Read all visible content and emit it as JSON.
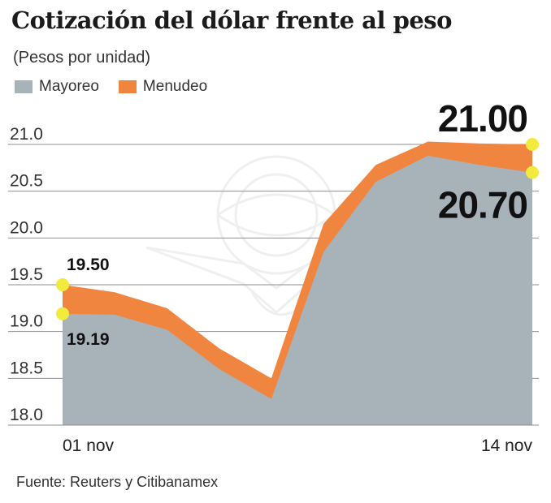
{
  "chart_data": {
    "type": "area",
    "title": "Cotización del dólar frente al peso",
    "subtitle": "(Pesos por unidad)",
    "ylim": [
      18.0,
      21.0
    ],
    "yticks": [
      "18.0",
      "18.5",
      "19.0",
      "19.5",
      "20.0",
      "20.5",
      "21.0"
    ],
    "ytick_values": [
      18.0,
      18.5,
      19.0,
      19.5,
      20.0,
      20.5,
      21.0
    ],
    "x_labels": [
      "01 nov",
      "14 nov"
    ],
    "x": [
      1,
      2,
      3,
      4,
      5,
      6,
      7,
      8,
      9,
      10
    ],
    "series": [
      {
        "name": "Mayoreo",
        "color": "#a7b2b9",
        "values": [
          19.19,
          19.18,
          19.02,
          18.6,
          18.28,
          19.85,
          20.6,
          20.88,
          20.78,
          20.7
        ]
      },
      {
        "name": "Menudeo",
        "color": "#f0853f",
        "values": [
          19.5,
          19.42,
          19.25,
          18.82,
          18.5,
          20.15,
          20.78,
          21.03,
          21.01,
          21.0
        ]
      }
    ],
    "annotations": [
      {
        "text": "19.50",
        "series": "Menudeo",
        "index": 0
      },
      {
        "text": "19.19",
        "series": "Mayoreo",
        "index": 0
      },
      {
        "text": "21.00",
        "series": "Menudeo",
        "index": 9
      },
      {
        "text": "20.70",
        "series": "Mayoreo",
        "index": 9
      }
    ],
    "highlight_color": "#f2ea3c"
  },
  "source": "Fuente: Reuters y Citibanamex"
}
